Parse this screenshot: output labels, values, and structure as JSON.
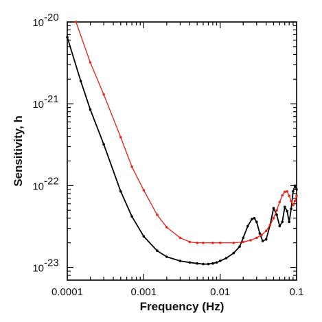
{
  "chart_data": {
    "type": "line",
    "xlabel": "Frequency (Hz)",
    "ylabel": "Sensitivity, h",
    "xscale": "log",
    "yscale": "log",
    "xlim": [
      0.0001,
      0.1
    ],
    "ylim": [
      7e-24,
      1e-20
    ],
    "grid": false,
    "legend": "none",
    "x_ticks": [
      {
        "value": 0.0001,
        "label": "0.0001"
      },
      {
        "value": 0.001,
        "label": "0.001"
      },
      {
        "value": 0.01,
        "label": "0.01"
      },
      {
        "value": 0.1,
        "label": "0.1"
      }
    ],
    "y_ticks": [
      {
        "value": 1e-23,
        "base": "10",
        "exp": "-23"
      },
      {
        "value": 1e-22,
        "base": "10",
        "exp": "-22"
      },
      {
        "value": 1e-21,
        "base": "10",
        "exp": "-21"
      },
      {
        "value": 1e-20,
        "base": "10",
        "exp": "-20"
      }
    ],
    "series": [
      {
        "color": "#000000",
        "x": [
          0.0001,
          0.00015,
          0.0002,
          0.0003,
          0.0005,
          0.0007,
          0.001,
          0.0015,
          0.002,
          0.003,
          0.004,
          0.005,
          0.006,
          0.007,
          0.008,
          0.009,
          0.01,
          0.012,
          0.015,
          0.018,
          0.02,
          0.023,
          0.026,
          0.028,
          0.03,
          0.033,
          0.036,
          0.04,
          0.045,
          0.05,
          0.055,
          0.06,
          0.065,
          0.07,
          0.075,
          0.08,
          0.085,
          0.09,
          0.095,
          0.1
        ],
        "y": [
          6.5e-21,
          1.9e-21,
          8.5e-22,
          3.2e-22,
          8.5e-23,
          4.2e-23,
          2.4e-23,
          1.6e-23,
          1.35e-23,
          1.2e-23,
          1.15e-23,
          1.12e-23,
          1.1e-23,
          1.1e-23,
          1.12e-23,
          1.15e-23,
          1.2e-23,
          1.3e-23,
          1.5e-23,
          1.8e-23,
          2.3e-23,
          3.2e-23,
          3.9e-23,
          4e-23,
          3.6e-23,
          2.6e-23,
          2.1e-23,
          2.2e-23,
          3.3e-23,
          5.3e-23,
          4.4e-23,
          3.2e-23,
          3.6e-23,
          5.5e-23,
          4.9e-23,
          3.6e-23,
          5.2e-23,
          8.5e-23,
          1e-22,
          9e-23
        ]
      },
      {
        "color": "#e8281e",
        "x": [
          0.00013,
          0.0002,
          0.0003,
          0.0005,
          0.0007,
          0.001,
          0.0015,
          0.002,
          0.003,
          0.004,
          0.005,
          0.006,
          0.008,
          0.01,
          0.015,
          0.02,
          0.025,
          0.03,
          0.035,
          0.04,
          0.045,
          0.05,
          0.055,
          0.06,
          0.065,
          0.07,
          0.075,
          0.08,
          0.085,
          0.09,
          0.095,
          0.1
        ],
        "y": [
          1e-20,
          3.2e-21,
          1.3e-21,
          3.9e-22,
          1.7e-22,
          8.8e-23,
          4.4e-23,
          3.1e-23,
          2.3e-23,
          2.05e-23,
          2e-23,
          2e-23,
          2e-23,
          2e-23,
          2e-23,
          2.05e-23,
          2.15e-23,
          2.3e-23,
          2.5e-23,
          2.8e-23,
          3.3e-23,
          4e-23,
          5e-23,
          6.3e-23,
          7.6e-23,
          8.4e-23,
          8.5e-23,
          7.5e-23,
          6.5e-23,
          5.8e-23,
          6.5e-23,
          7.5e-23
        ]
      }
    ]
  }
}
